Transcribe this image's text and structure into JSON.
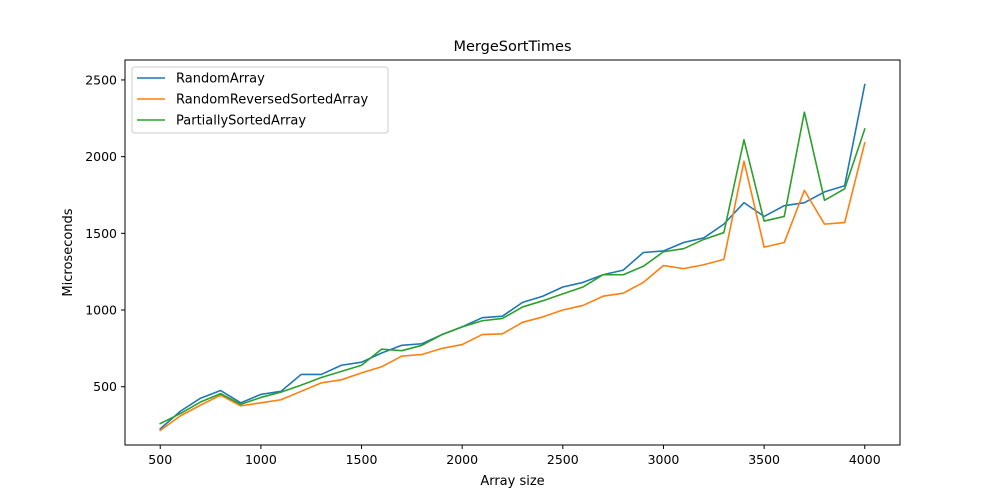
{
  "chart_data": {
    "type": "line",
    "title": "MergeSortTimes",
    "xlabel": "Array size",
    "ylabel": "Microseconds",
    "xlim": [
      325,
      4175
    ],
    "ylim": [
      120,
      2630
    ],
    "xticks": [
      500,
      1000,
      1500,
      2000,
      2500,
      3000,
      3500,
      4000
    ],
    "yticks": [
      500,
      1000,
      1500,
      2000,
      2500
    ],
    "grid": false,
    "legend_position": "top-left",
    "x": [
      500,
      600,
      700,
      800,
      900,
      1000,
      1100,
      1200,
      1300,
      1400,
      1500,
      1600,
      1700,
      1800,
      1900,
      2000,
      2100,
      2200,
      2300,
      2400,
      2500,
      2600,
      2700,
      2800,
      2900,
      3000,
      3100,
      3200,
      3300,
      3400,
      3500,
      3600,
      3700,
      3800,
      3900,
      4000
    ],
    "series": [
      {
        "name": "RandomArray",
        "color": "#1f77b4",
        "values": [
          225,
          340,
          425,
          475,
          395,
          450,
          470,
          580,
          580,
          640,
          660,
          720,
          770,
          780,
          840,
          890,
          950,
          960,
          1050,
          1090,
          1150,
          1180,
          1230,
          1260,
          1375,
          1385,
          1440,
          1470,
          1560,
          1700,
          1610,
          1680,
          1700,
          1770,
          1810,
          2470
        ]
      },
      {
        "name": "RandomReversedSortedArray",
        "color": "#ff7f0e",
        "values": [
          215,
          310,
          380,
          445,
          375,
          395,
          415,
          470,
          525,
          545,
          590,
          630,
          700,
          710,
          750,
          775,
          840,
          845,
          920,
          955,
          1000,
          1030,
          1090,
          1110,
          1180,
          1290,
          1270,
          1295,
          1330,
          1970,
          1410,
          1440,
          1780,
          1560,
          1570,
          2090
        ]
      },
      {
        "name": "PartiallySortedArray",
        "color": "#2ca02c",
        "values": [
          260,
          325,
          400,
          455,
          385,
          430,
          465,
          510,
          560,
          600,
          640,
          745,
          735,
          770,
          840,
          890,
          930,
          945,
          1020,
          1060,
          1105,
          1150,
          1230,
          1230,
          1285,
          1380,
          1400,
          1460,
          1505,
          2110,
          1580,
          1610,
          2290,
          1715,
          1790,
          2180
        ]
      }
    ]
  }
}
